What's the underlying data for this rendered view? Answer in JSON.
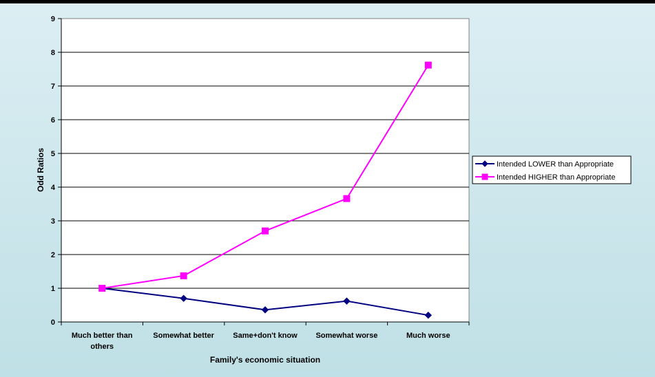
{
  "chart_data": {
    "type": "line",
    "title": "",
    "xlabel": "Family's economic situation",
    "ylabel": "Odd Ratios",
    "ylim": [
      0,
      9
    ],
    "yticks": [
      "0",
      "1",
      "2",
      "3",
      "4",
      "5",
      "6",
      "7",
      "8",
      "9"
    ],
    "categories": [
      [
        "Much better than",
        "others"
      ],
      [
        "Somewhat better"
      ],
      [
        "Same+don't know"
      ],
      [
        "Somewhat worse"
      ],
      [
        "Much worse"
      ]
    ],
    "series": [
      {
        "name": "Intended LOWER than Appropriate",
        "values": [
          1.0,
          0.7,
          0.36,
          0.62,
          0.2
        ],
        "color": "#000080",
        "marker": "diamond"
      },
      {
        "name": "Intended HIGHER than Appropriate",
        "values": [
          1.0,
          1.37,
          2.7,
          3.66,
          7.62
        ],
        "color": "#ff00ff",
        "marker": "square"
      }
    ],
    "grid": true,
    "legend": "right"
  }
}
